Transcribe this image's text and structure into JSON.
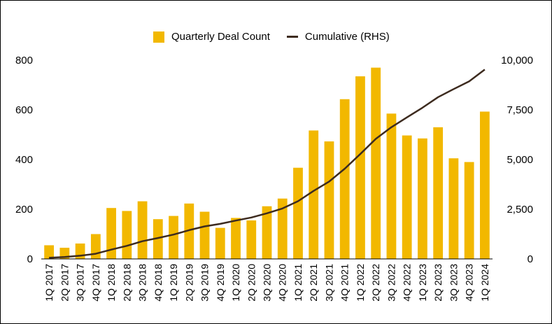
{
  "chart_data": {
    "type": "bar",
    "categories": [
      "1Q 2017",
      "2Q 2017",
      "3Q 2017",
      "4Q 2017",
      "1Q 2018",
      "2Q 2018",
      "3Q 2018",
      "4Q 2018",
      "1Q 2019",
      "2Q 2019",
      "3Q 2019",
      "4Q 2019",
      "1Q 2020",
      "2Q 2020",
      "3Q 2020",
      "4Q 2020",
      "1Q 2021",
      "2Q 2021",
      "3Q 2021",
      "4Q 2021",
      "1Q 2022",
      "2Q 2022",
      "3Q 2022",
      "4Q 2022",
      "1Q 2023",
      "2Q 2023",
      "3Q 2023",
      "4Q 2023",
      "1Q 2024"
    ],
    "series": [
      {
        "name": "Quarterly Deal Count",
        "type": "bar",
        "axis": "left",
        "color": "#F2B800",
        "values": [
          55,
          45,
          62,
          100,
          205,
          193,
          232,
          160,
          173,
          223,
          190,
          125,
          165,
          155,
          212,
          243,
          367,
          517,
          473,
          643,
          735,
          770,
          585,
          497,
          485,
          530,
          405,
          390,
          593
        ]
      },
      {
        "name": "Cumulative (RHS)",
        "type": "line",
        "axis": "right",
        "color": "#3D2B1F",
        "values": [
          55,
          100,
          162,
          262,
          467,
          660,
          892,
          1052,
          1225,
          1448,
          1638,
          1763,
          1928,
          2083,
          2295,
          2538,
          2905,
          3422,
          3895,
          4538,
          5273,
          6043,
          6628,
          7125,
          7610,
          8140,
          8545,
          8935,
          9528
        ]
      }
    ],
    "left_axis": {
      "ylim": [
        0,
        800
      ],
      "ticks": [
        "0",
        "200",
        "400",
        "600",
        "800"
      ]
    },
    "right_axis": {
      "ylim": [
        0,
        10000
      ],
      "ticks": [
        "0",
        "2,500",
        "5,000",
        "7,500",
        "10,000"
      ]
    },
    "legend_position": "top-center",
    "grid": false
  }
}
